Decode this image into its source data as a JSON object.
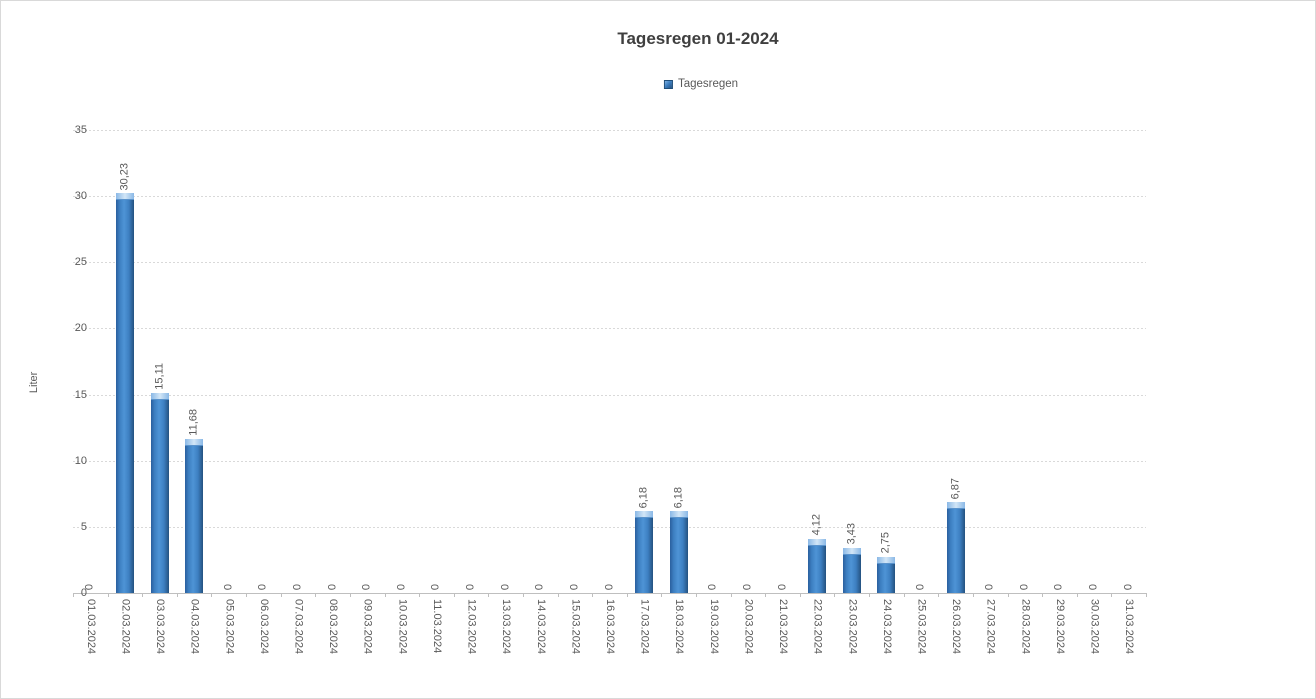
{
  "chart": {
    "title": "Tagesregen 01-2024",
    "legend": {
      "label": "Tagesregen"
    },
    "y_axis_title": "Liter"
  },
  "chart_data": {
    "type": "bar",
    "title": "Tagesregen 01-2024",
    "xlabel": "",
    "ylabel": "Liter",
    "ylim": [
      0,
      35
    ],
    "y_ticks": [
      0,
      5,
      10,
      15,
      20,
      25,
      30,
      35
    ],
    "grid": true,
    "legend_position": "top-center",
    "categories": [
      "01.03.2024",
      "02.03.2024",
      "03.03.2024",
      "04.03.2024",
      "05.03.2024",
      "06.03.2024",
      "07.03.2024",
      "08.03.2024",
      "09.03.2024",
      "10.03.2024",
      "11.03.2024",
      "12.03.2024",
      "13.03.2024",
      "14.03.2024",
      "15.03.2024",
      "16.03.2024",
      "17.03.2024",
      "18.03.2024",
      "19.03.2024",
      "20.03.2024",
      "21.03.2024",
      "22.03.2024",
      "23.03.2024",
      "24.03.2024",
      "25.03.2024",
      "26.03.2024",
      "27.03.2024",
      "28.03.2024",
      "29.03.2024",
      "30.03.2024",
      "31.03.2024"
    ],
    "series": [
      {
        "name": "Tagesregen",
        "values": [
          0,
          30.23,
          15.11,
          11.68,
          0,
          0,
          0,
          0,
          0,
          0,
          0,
          0,
          0,
          0,
          0,
          0,
          6.18,
          6.18,
          0,
          0,
          0,
          4.12,
          3.43,
          2.75,
          0,
          6.87,
          0,
          0,
          0,
          0,
          0
        ],
        "labels": [
          "0",
          "30,23",
          "15,11",
          "11,68",
          "0",
          "0",
          "0",
          "0",
          "0",
          "0",
          "0",
          "0",
          "0",
          "0",
          "0",
          "0",
          "6,18",
          "6,18",
          "0",
          "0",
          "0",
          "4,12",
          "3,43",
          "2,75",
          "0",
          "6,87",
          "0",
          "0",
          "0",
          "0",
          "0"
        ]
      }
    ]
  },
  "colors": {
    "bar_main": "#3d7fc1",
    "bar_edge_dark": "#24517f",
    "bar_cap_light": "#d2e6f7",
    "title_text": "#3f3f3f",
    "axis_text": "#595959",
    "gridline": "#d9d9d9",
    "axis_line": "#bfbfbf"
  }
}
